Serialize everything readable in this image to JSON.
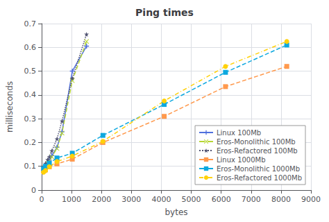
{
  "chart_data": {
    "type": "line",
    "title": "Ping times",
    "xlabel": "bytes",
    "ylabel": "milliseconds",
    "xlim": [
      0,
      9000
    ],
    "ylim": [
      0,
      0.7
    ],
    "xticks": [
      0,
      1000,
      2000,
      3000,
      4000,
      5000,
      6000,
      7000,
      8000,
      9000
    ],
    "yticks": [
      0,
      0.1,
      0.2,
      0.3,
      0.4,
      0.5,
      0.6,
      0.7
    ],
    "grid": true,
    "legend": "lower right",
    "series": [
      {
        "name": "Linux 100Mb",
        "marker": "plus",
        "line_style": "solid",
        "x": [
          64,
          128,
          200,
          256,
          340,
          512,
          680,
          1024,
          1500
        ],
        "values": [
          0.095,
          0.1,
          0.115,
          0.125,
          0.145,
          0.18,
          0.245,
          0.5,
          0.605
        ]
      },
      {
        "name": "Eros-Monolithic 100Mb",
        "marker": "x",
        "line_style": "dashed",
        "x": [
          64,
          128,
          200,
          256,
          340,
          512,
          680,
          1024,
          1500
        ],
        "values": [
          0.088,
          0.098,
          0.112,
          0.122,
          0.14,
          0.175,
          0.24,
          0.46,
          0.625
        ]
      },
      {
        "name": "Eros-Refactored 100Mb",
        "marker": "star",
        "line_style": "dotted",
        "x": [
          64,
          128,
          200,
          256,
          340,
          512,
          680,
          1024,
          1500
        ],
        "values": [
          0.1,
          0.112,
          0.128,
          0.14,
          0.165,
          0.215,
          0.29,
          0.47,
          0.655
        ]
      },
      {
        "name": "Linux 1000Mb",
        "marker": "square",
        "line_style": "dashed",
        "x": [
          64,
          128,
          256,
          512,
          1024,
          2048,
          4096,
          6144,
          8192
        ],
        "values": [
          0.08,
          0.085,
          0.098,
          0.11,
          0.13,
          0.2,
          0.31,
          0.435,
          0.52
        ]
      },
      {
        "name": "Eros-Monolithic 1000Mb",
        "marker": "square",
        "line_style": "dashed",
        "x": [
          64,
          128,
          256,
          512,
          1024,
          2048,
          4096,
          6144,
          8192
        ],
        "values": [
          0.09,
          0.1,
          0.113,
          0.135,
          0.155,
          0.23,
          0.36,
          0.495,
          0.61
        ]
      },
      {
        "name": "Eros-Refactored 1000Mb",
        "marker": "circle",
        "line_style": "dashdot",
        "x": [
          64,
          128,
          256,
          512,
          1024,
          2048,
          4096,
          6144,
          8192
        ],
        "values": [
          0.075,
          0.082,
          0.098,
          0.12,
          0.143,
          0.205,
          0.375,
          0.52,
          0.625
        ]
      }
    ]
  }
}
